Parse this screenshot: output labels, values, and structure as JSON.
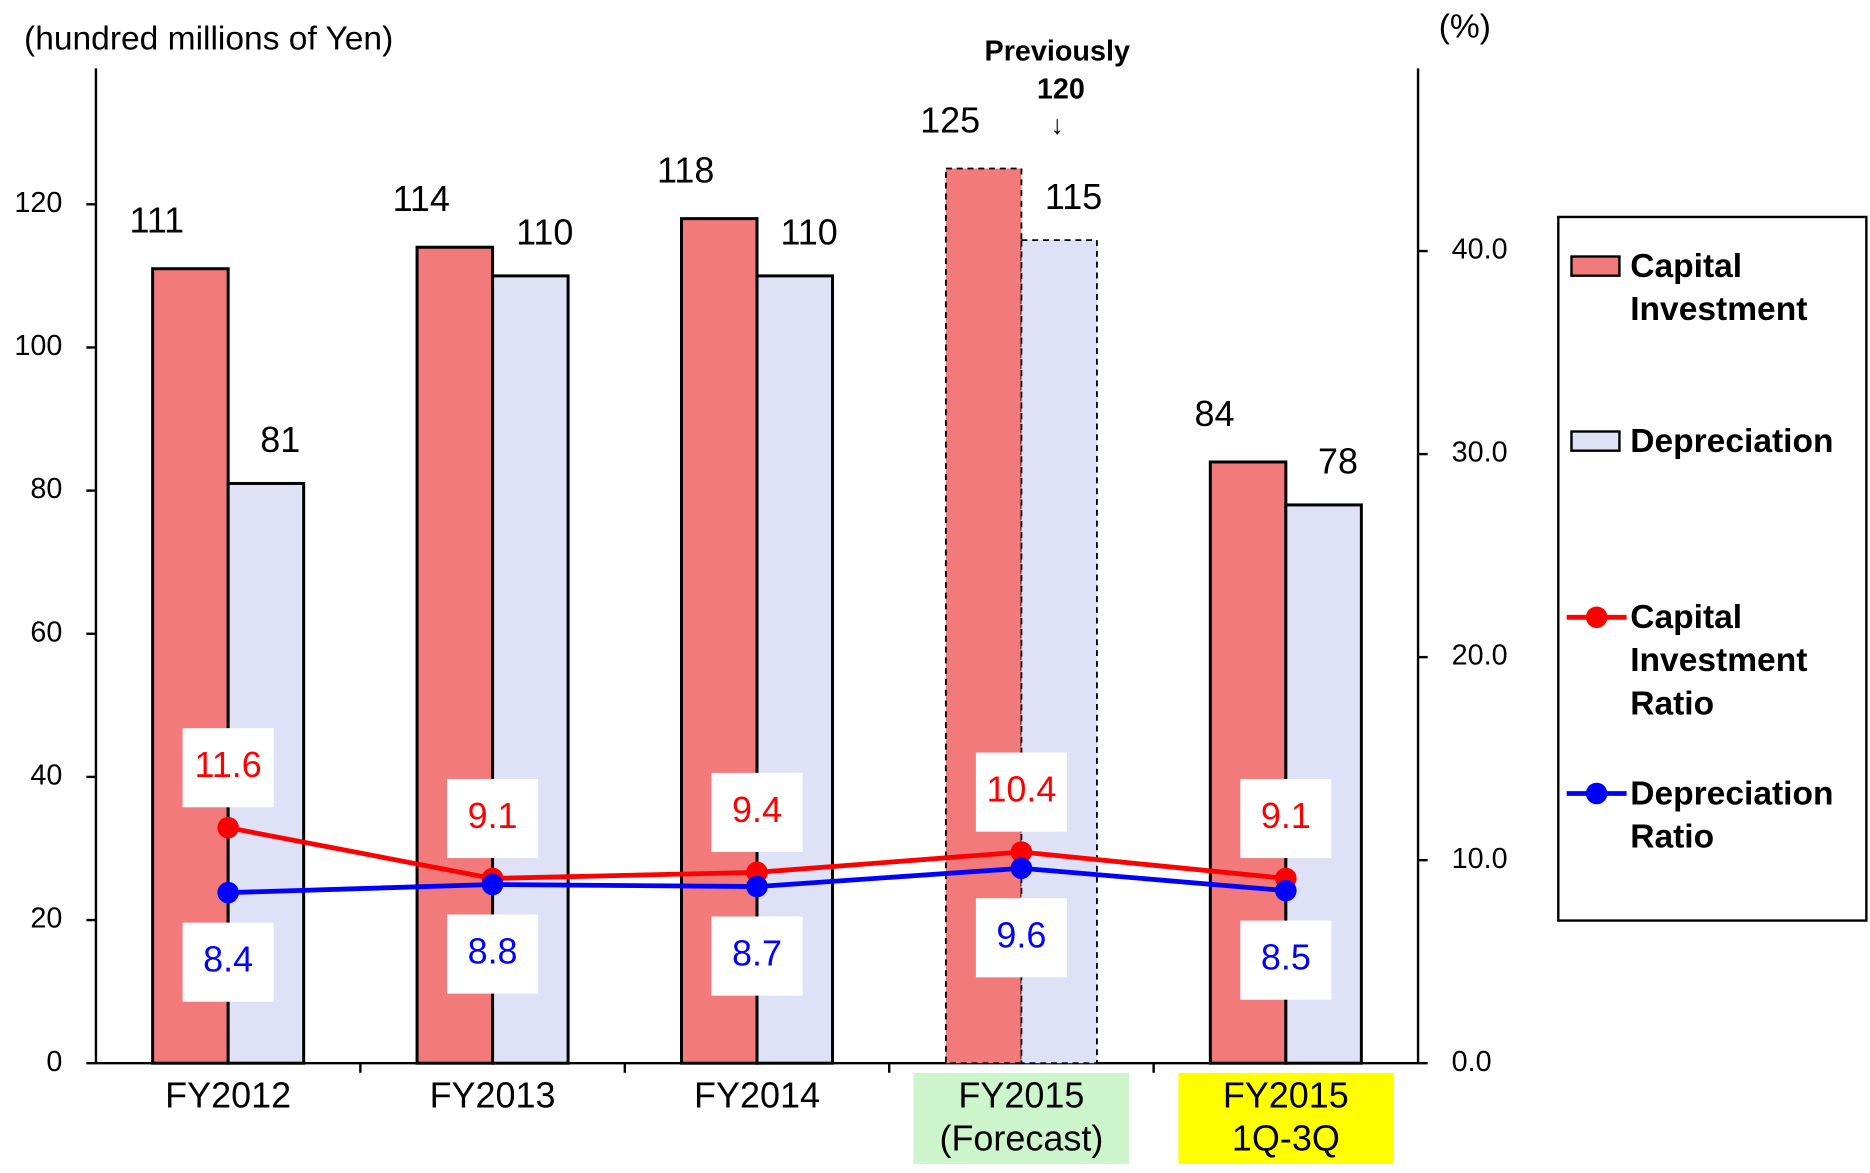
{
  "chart_data": {
    "type": "bar_line",
    "y_label": "(hundred millions of Yen)",
    "y2_label": "(%)",
    "annotations": [
      "Previously",
      "120",
      "↓"
    ],
    "categories": [
      "FY2012",
      "FY2013",
      "FY2014",
      "FY2015\n(Forecast)",
      "FY2015\n1Q-3Q"
    ],
    "category_highlights": [
      null,
      null,
      null,
      "#ccf5cc",
      "#ffff00"
    ],
    "dashed": [
      false,
      false,
      false,
      true,
      false
    ],
    "series": [
      {
        "name": "Capital Investment",
        "type": "bar",
        "color": "#f27a7a",
        "values": [
          111,
          114,
          118,
          125,
          84
        ]
      },
      {
        "name": "Depreciation",
        "type": "bar",
        "color": "#dfe1f6",
        "values": [
          81,
          110,
          110,
          115,
          78
        ]
      },
      {
        "name": "Capital Investment Ratio",
        "type": "line",
        "axis": "y2",
        "color": "#ff0000",
        "values": [
          11.6,
          9.1,
          9.4,
          10.4,
          9.1
        ]
      },
      {
        "name": "Depreciation Ratio",
        "type": "line",
        "axis": "y2",
        "color": "#0000ff",
        "values": [
          8.4,
          8.8,
          8.7,
          9.6,
          8.5
        ]
      }
    ],
    "ylim": [
      0,
      139
    ],
    "yticks": [
      0,
      20,
      40,
      60,
      80,
      100,
      120
    ],
    "y2lim": [
      0,
      49
    ],
    "y2ticks": [
      {
        "value": 0,
        "label": "0.0"
      },
      {
        "value": 10,
        "label": "10.0"
      },
      {
        "value": 20,
        "label": "20.0"
      },
      {
        "value": 30,
        "label": "30.0"
      },
      {
        "value": 40,
        "label": "40.0"
      }
    ]
  }
}
